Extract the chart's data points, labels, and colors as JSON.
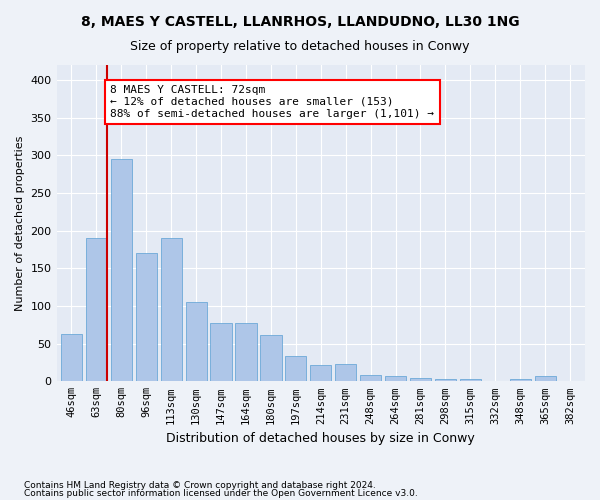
{
  "title1": "8, MAES Y CASTELL, LLANRHOS, LLANDUDNO, LL30 1NG",
  "title2": "Size of property relative to detached houses in Conwy",
  "xlabel": "Distribution of detached houses by size in Conwy",
  "ylabel": "Number of detached properties",
  "footnote1": "Contains HM Land Registry data © Crown copyright and database right 2024.",
  "footnote2": "Contains public sector information licensed under the Open Government Licence v3.0.",
  "annotation_line1": "8 MAES Y CASTELL: 72sqm",
  "annotation_line2": "← 12% of detached houses are smaller (153)",
  "annotation_line3": "88% of semi-detached houses are larger (1,101) →",
  "bar_color": "#aec6e8",
  "bar_edge_color": "#5a9fd4",
  "marker_color": "#cc0000",
  "categories": [
    "46sqm",
    "63sqm",
    "80sqm",
    "96sqm",
    "113sqm",
    "130sqm",
    "147sqm",
    "164sqm",
    "180sqm",
    "197sqm",
    "214sqm",
    "231sqm",
    "248sqm",
    "264sqm",
    "281sqm",
    "298sqm",
    "315sqm",
    "332sqm",
    "348sqm",
    "365sqm",
    "382sqm"
  ],
  "values": [
    63,
    190,
    295,
    170,
    190,
    105,
    78,
    78,
    61,
    33,
    21,
    23,
    8,
    7,
    4,
    3,
    3,
    0,
    3,
    7,
    0
  ],
  "ylim": [
    0,
    420
  ],
  "yticks": [
    0,
    50,
    100,
    150,
    200,
    250,
    300,
    350,
    400
  ],
  "background_color": "#eef2f8",
  "plot_bg_color": "#e4eaf4",
  "title1_fontsize": 10,
  "title2_fontsize": 9,
  "ylabel_fontsize": 8,
  "xlabel_fontsize": 9,
  "tick_fontsize": 8,
  "xtick_fontsize": 7.5,
  "footnote_fontsize": 6.5,
  "annotation_fontsize": 8
}
